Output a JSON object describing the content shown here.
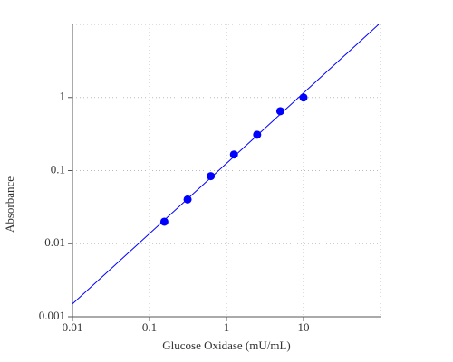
{
  "chart_data": {
    "type": "scatter",
    "x_label": "Glucose Oxidase (mU/mL)",
    "y_label": "Absorbance",
    "xscale": "log",
    "yscale": "log",
    "xlim": [
      0.01,
      100
    ],
    "ylim": [
      0.001,
      10
    ],
    "xticks": [
      0.01,
      0.1,
      1,
      10
    ],
    "yticks": [
      0.001,
      0.01,
      0.1,
      1
    ],
    "grid": true,
    "series": [
      {
        "mode": "markers",
        "color": "#0000ff",
        "x": [
          0.156,
          0.3125,
          0.625,
          1.25,
          2.5,
          5,
          10
        ],
        "values": [
          0.02,
          0.0403,
          0.084,
          0.166,
          0.31,
          0.65,
          1.0
        ]
      },
      {
        "mode": "line",
        "color": "#0000ff",
        "x": [
          0.01,
          94.6
        ],
        "values": [
          0.0015,
          10
        ]
      }
    ]
  }
}
